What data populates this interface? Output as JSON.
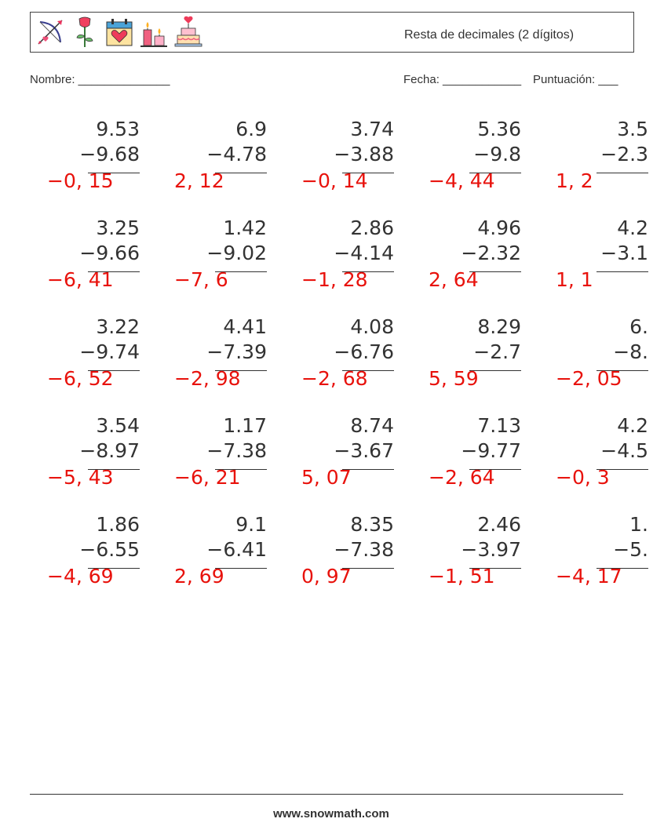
{
  "header": {
    "title": "Resta de decimales (2 dígitos)",
    "icons": [
      "bow-and-arrow-icon",
      "rose-icon",
      "calendar-heart-icon",
      "candles-icon",
      "cake-icon"
    ]
  },
  "info": {
    "name_label": "Nombre: ______________",
    "date_label": "Fecha: ____________",
    "score_label": "Puntuación: ___"
  },
  "problems": [
    [
      {
        "a": "9.53",
        "b": "−9.68",
        "ans": "−0, 15"
      },
      {
        "a": "6.9",
        "b": "−4.78",
        "ans": "2, 12"
      },
      {
        "a": "3.74",
        "b": "−3.88",
        "ans": "−0, 14"
      },
      {
        "a": "5.36",
        "b": "−9.8 ",
        "ans": "−4, 44"
      },
      {
        "a": "3.5",
        "b": "−2.3",
        "ans": "1, 2"
      }
    ],
    [
      {
        "a": "3.25",
        "b": "−9.66",
        "ans": "−6, 41"
      },
      {
        "a": "1.42",
        "b": "−9.02",
        "ans": "−7, 6"
      },
      {
        "a": "2.86",
        "b": "−4.14",
        "ans": "−1, 28"
      },
      {
        "a": "4.96",
        "b": "−2.32",
        "ans": "2, 64"
      },
      {
        "a": "4.2",
        "b": "−3.1",
        "ans": "1, 1"
      }
    ],
    [
      {
        "a": "3.22",
        "b": "−9.74",
        "ans": "−6, 52"
      },
      {
        "a": "4.41",
        "b": "−7.39",
        "ans": "−2, 98"
      },
      {
        "a": "4.08",
        "b": "−6.76",
        "ans": "−2, 68"
      },
      {
        "a": "8.29",
        "b": "−2.7 ",
        "ans": "5, 59"
      },
      {
        "a": "6.",
        "b": "−8.",
        "ans": "−2, 05"
      }
    ],
    [
      {
        "a": "3.54",
        "b": "−8.97",
        "ans": "−5, 43"
      },
      {
        "a": "1.17",
        "b": "−7.38",
        "ans": "−6, 21"
      },
      {
        "a": "8.74",
        "b": "−3.67",
        "ans": "5, 07"
      },
      {
        "a": "7.13",
        "b": "−9.77",
        "ans": "−2, 64"
      },
      {
        "a": "4.2",
        "b": "−4.5",
        "ans": "−0, 3"
      }
    ],
    [
      {
        "a": "1.86",
        "b": "−6.55",
        "ans": "−4, 69"
      },
      {
        "a": "9.1",
        "b": "−6.41",
        "ans": "2, 69"
      },
      {
        "a": "8.35",
        "b": "−7.38",
        "ans": "0, 97"
      },
      {
        "a": "2.46",
        "b": "−3.97",
        "ans": "−1, 51"
      },
      {
        "a": "1.",
        "b": "−5.",
        "ans": "−4, 17"
      }
    ]
  ],
  "footer": {
    "site": "www.snowmath.com"
  },
  "colors": {
    "answer": "#e8120c",
    "text": "#333333"
  }
}
